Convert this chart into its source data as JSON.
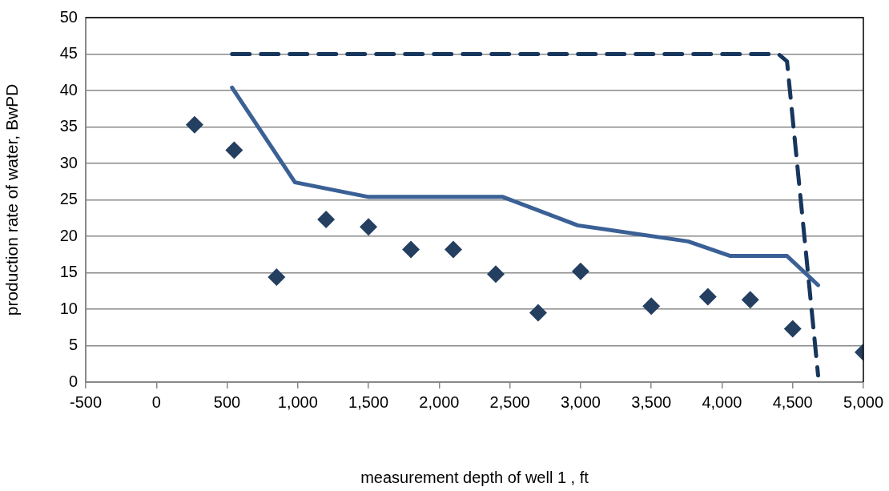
{
  "chart_data": {
    "type": "scatter",
    "xlabel": "measurement depth of well 1 , ft",
    "ylabel": "production rate of water, BwPD",
    "xlim": [
      -500,
      5000
    ],
    "xticks": [
      -500,
      0,
      500,
      {
        "value": 1000,
        "label": "1,000"
      },
      {
        "value": 1500,
        "label": "1,500"
      },
      {
        "value": 2000,
        "label": "2,000"
      },
      {
        "value": 2500,
        "label": "2,500"
      },
      {
        "value": 3000,
        "label": "3,000"
      },
      {
        "value": 3500,
        "label": "3,500"
      },
      {
        "value": 4000,
        "label": "4,000"
      },
      {
        "value": 4500,
        "label": "4,500"
      },
      {
        "value": 5000,
        "label": "5,000"
      }
    ],
    "ylim": [
      0,
      50
    ],
    "yticks": [
      0,
      5,
      10,
      15,
      20,
      25,
      30,
      35,
      40,
      45,
      50
    ],
    "grid": "y",
    "legend": false,
    "series": [
      {
        "type": "line",
        "color": "#3a6096",
        "marker": "none",
        "line_style": "solid",
        "x": [
          535,
          980,
          1500,
          2450,
          2980,
          3760,
          4060,
          4460,
          4680
        ],
        "values": [
          40.4,
          27.4,
          25.4,
          25.4,
          21.5,
          19.3,
          17.3,
          17.3,
          13.3
        ]
      },
      {
        "type": "line",
        "color": "#17365d",
        "marker": "none",
        "line_style": "dashed",
        "x": [
          535,
          4400,
          4460,
          4680
        ],
        "values": [
          45,
          45,
          44,
          0.9
        ]
      },
      {
        "type": "scatter",
        "color": "#243f60",
        "marker": "diamond",
        "x": [
          270,
          550,
          850,
          1200,
          1500,
          1800,
          2100,
          2400,
          2700,
          3000,
          3500,
          3900,
          4200,
          4500,
          5000
        ],
        "values": [
          35.3,
          31.8,
          14.4,
          22.3,
          21.3,
          18.2,
          18.2,
          14.8,
          9.5,
          15.2,
          10.4,
          11.7,
          11.3,
          7.3,
          4.1
        ]
      }
    ]
  }
}
